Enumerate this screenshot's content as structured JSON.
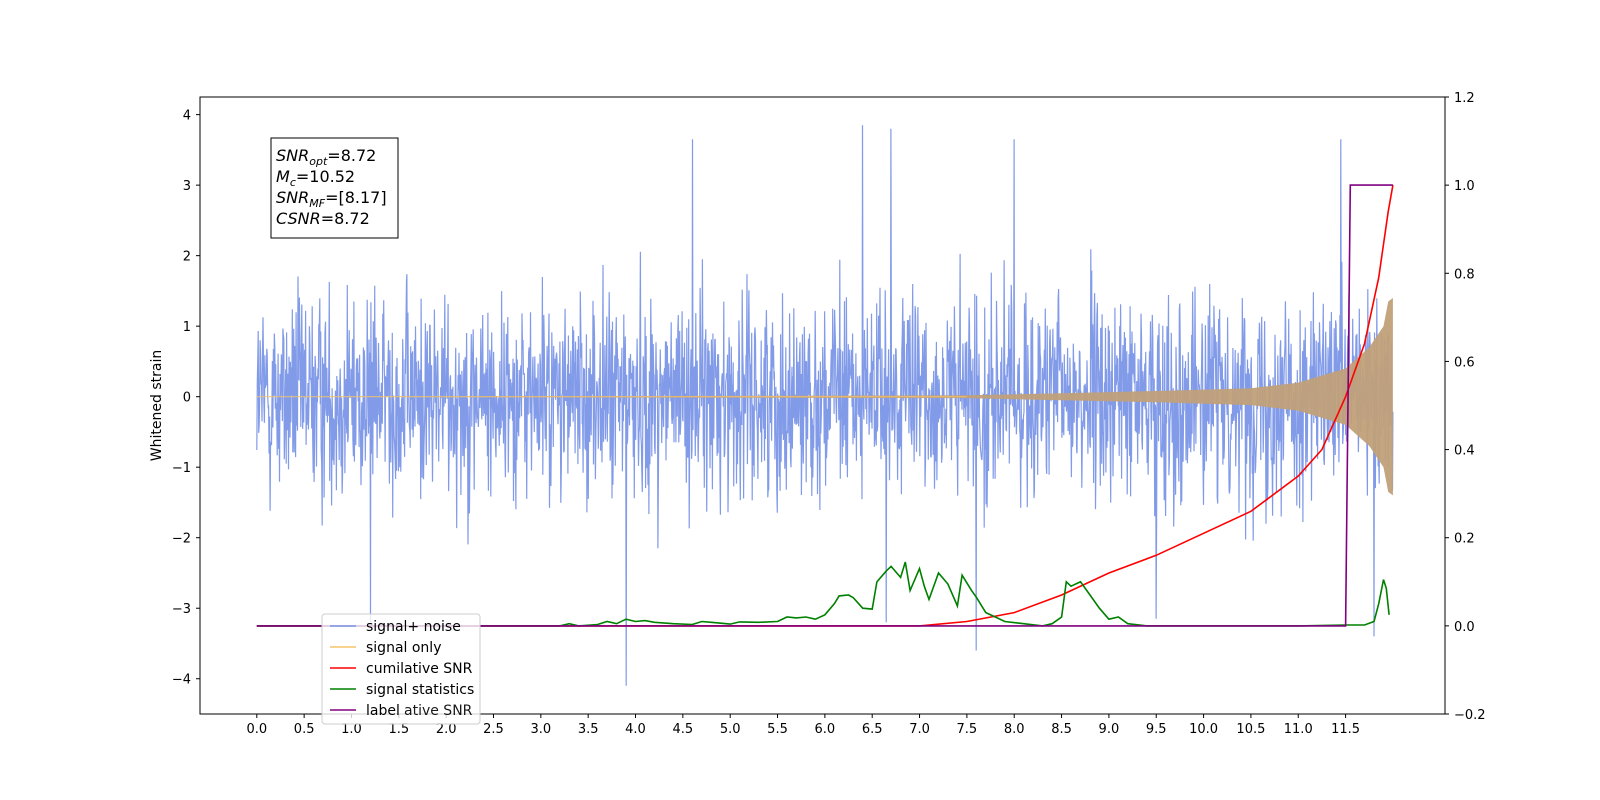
{
  "chart_data": {
    "type": "line",
    "xlabel": "",
    "ylabel": "Whitened strain",
    "x_ticks": [
      "0.0",
      "0.5",
      "1.0",
      "1.5",
      "2.0",
      "2.5",
      "3.0",
      "3.5",
      "4.0",
      "4.5",
      "5.0",
      "5.5",
      "6.0",
      "6.5",
      "7.0",
      "7.5",
      "8.0",
      "8.5",
      "9.0",
      "9.5",
      "10.0",
      "10.5",
      "11.0",
      "11.5"
    ],
    "xlim": [
      -0.6,
      12.55
    ],
    "ylim_left": [
      -4.5,
      4.25
    ],
    "y_ticks_left": [
      "4",
      "3",
      "2",
      "1",
      "0",
      "−1",
      "−2",
      "−3",
      "−4"
    ],
    "ylim_right": [
      -0.2,
      1.2
    ],
    "y_ticks_right": [
      "1.2",
      "1.0",
      "0.8",
      "0.6",
      "0.4",
      "0.2",
      "0.0",
      "−0.2"
    ],
    "annotation": {
      "lines": [
        {
          "main": "SNR",
          "sub": "opt",
          "rest": "=8.72"
        },
        {
          "main": "M",
          "sub": "c",
          "rest": "=10.52"
        },
        {
          "main": "SNR",
          "sub": "MF",
          "rest": "=[8.17]"
        },
        {
          "main": "CSNR",
          "sub": "",
          "rest": "=8.72"
        }
      ]
    },
    "legend_placement": "lower-left",
    "legend": [
      {
        "label": "signal+ noise",
        "color": "#7b96e8"
      },
      {
        "label": "signal only",
        "color": "#f5c36b"
      },
      {
        "label": "cumilative SNR",
        "color": "#ff0000"
      },
      {
        "label": "signal statistics",
        "color": "#008000"
      },
      {
        "label": "label",
        "color": "#800080"
      }
    ],
    "legend_ghost_text": "ative SNR",
    "series": [
      {
        "name": "signal+ noise",
        "axis": "left",
        "color": "#7b96e8",
        "x_range": [
          0.0,
          12.0
        ],
        "amplitude_typical": 1.6,
        "peaks": [
          {
            "x": 6.4,
            "y": 3.85
          },
          {
            "x": 6.7,
            "y": 3.8
          },
          {
            "x": 11.45,
            "y": 3.65
          },
          {
            "x": 4.6,
            "y": 3.65
          },
          {
            "x": 8.0,
            "y": 3.65
          },
          {
            "x": 3.9,
            "y": -4.1
          },
          {
            "x": 7.6,
            "y": -3.6
          },
          {
            "x": 11.8,
            "y": -3.4
          },
          {
            "x": 1.2,
            "y": -3.2
          },
          {
            "x": 6.65,
            "y": -3.2
          },
          {
            "x": 9.5,
            "y": -3.15
          }
        ]
      },
      {
        "name": "signal only",
        "axis": "left",
        "color": "#f5c36b",
        "points": [
          [
            0.0,
            0.0
          ],
          [
            7.5,
            0.02
          ],
          [
            8.5,
            0.05
          ],
          [
            9.5,
            0.08
          ],
          [
            10.5,
            0.12
          ],
          [
            11.0,
            0.2
          ],
          [
            11.5,
            0.4
          ],
          [
            11.75,
            0.7
          ],
          [
            11.9,
            1.0
          ],
          [
            11.95,
            1.35
          ],
          [
            12.0,
            1.4
          ]
        ]
      },
      {
        "name": "cumilative SNR",
        "axis": "right",
        "color": "#ff0000",
        "points": [
          [
            0.0,
            0.0
          ],
          [
            7.0,
            0.0
          ],
          [
            7.5,
            0.01
          ],
          [
            8.0,
            0.03
          ],
          [
            8.5,
            0.07
          ],
          [
            9.0,
            0.12
          ],
          [
            9.5,
            0.16
          ],
          [
            10.0,
            0.21
          ],
          [
            10.5,
            0.26
          ],
          [
            11.0,
            0.34
          ],
          [
            11.25,
            0.4
          ],
          [
            11.5,
            0.52
          ],
          [
            11.7,
            0.64
          ],
          [
            11.85,
            0.79
          ],
          [
            11.95,
            0.94
          ],
          [
            12.0,
            1.0
          ]
        ]
      },
      {
        "name": "signal statistics",
        "axis": "right",
        "color": "#008000",
        "points": [
          [
            0.0,
            0.0
          ],
          [
            3.2,
            0.0
          ],
          [
            3.3,
            0.005
          ],
          [
            3.4,
            0.0
          ],
          [
            3.6,
            0.003
          ],
          [
            3.7,
            0.01
          ],
          [
            3.8,
            0.005
          ],
          [
            3.9,
            0.015
          ],
          [
            4.0,
            0.01
          ],
          [
            4.1,
            0.012
          ],
          [
            4.2,
            0.008
          ],
          [
            4.4,
            0.005
          ],
          [
            4.6,
            0.003
          ],
          [
            4.7,
            0.01
          ],
          [
            4.8,
            0.008
          ],
          [
            5.0,
            0.004
          ],
          [
            5.1,
            0.009
          ],
          [
            5.3,
            0.008
          ],
          [
            5.5,
            0.01
          ],
          [
            5.6,
            0.02
          ],
          [
            5.7,
            0.018
          ],
          [
            5.8,
            0.02
          ],
          [
            5.9,
            0.015
          ],
          [
            6.0,
            0.025
          ],
          [
            6.1,
            0.05
          ],
          [
            6.15,
            0.068
          ],
          [
            6.25,
            0.07
          ],
          [
            6.3,
            0.064
          ],
          [
            6.4,
            0.04
          ],
          [
            6.5,
            0.038
          ],
          [
            6.55,
            0.1
          ],
          [
            6.65,
            0.125
          ],
          [
            6.7,
            0.135
          ],
          [
            6.8,
            0.11
          ],
          [
            6.85,
            0.145
          ],
          [
            6.9,
            0.08
          ],
          [
            7.0,
            0.13
          ],
          [
            7.05,
            0.09
          ],
          [
            7.1,
            0.06
          ],
          [
            7.2,
            0.12
          ],
          [
            7.3,
            0.095
          ],
          [
            7.4,
            0.045
          ],
          [
            7.45,
            0.115
          ],
          [
            7.55,
            0.08
          ],
          [
            7.6,
            0.065
          ],
          [
            7.7,
            0.03
          ],
          [
            7.8,
            0.02
          ],
          [
            7.9,
            0.01
          ],
          [
            8.1,
            0.005
          ],
          [
            8.3,
            0.0
          ],
          [
            8.4,
            0.005
          ],
          [
            8.5,
            0.02
          ],
          [
            8.55,
            0.1
          ],
          [
            8.6,
            0.09
          ],
          [
            8.7,
            0.1
          ],
          [
            8.8,
            0.07
          ],
          [
            8.9,
            0.04
          ],
          [
            9.0,
            0.015
          ],
          [
            9.1,
            0.02
          ],
          [
            9.2,
            0.005
          ],
          [
            9.4,
            0.0
          ],
          [
            10.0,
            0.0
          ],
          [
            10.5,
            0.0
          ],
          [
            11.0,
            0.0
          ],
          [
            11.5,
            0.002
          ],
          [
            11.7,
            0.002
          ],
          [
            11.8,
            0.01
          ],
          [
            11.85,
            0.05
          ],
          [
            11.9,
            0.105
          ],
          [
            11.93,
            0.085
          ],
          [
            11.96,
            0.025
          ]
        ]
      },
      {
        "name": "label",
        "axis": "right",
        "color": "#800080",
        "points": [
          [
            0.0,
            0.0
          ],
          [
            11.5,
            0.0
          ],
          [
            11.55,
            1.0
          ],
          [
            12.0,
            1.0
          ]
        ]
      }
    ]
  }
}
